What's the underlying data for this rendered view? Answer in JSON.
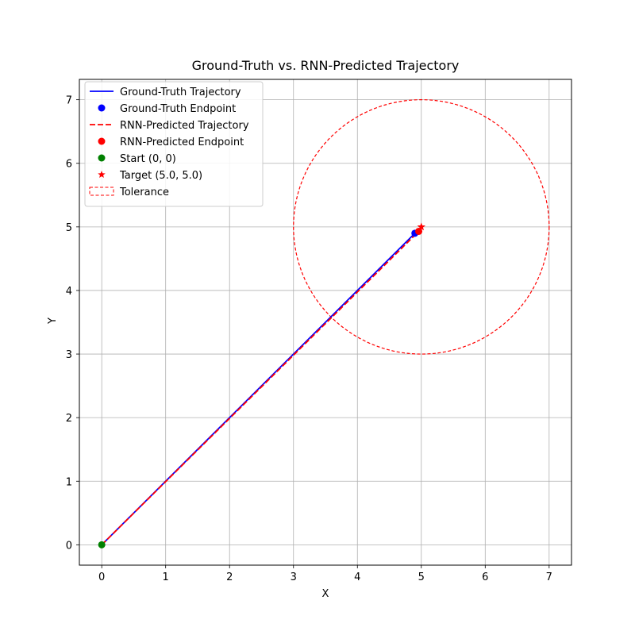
{
  "chart_data": {
    "type": "line",
    "title": "Ground-Truth vs. RNN-Predicted Trajectory",
    "xlabel": "X",
    "ylabel": "Y",
    "xlim": [
      -0.35,
      7.35
    ],
    "ylim": [
      -0.32,
      7.32
    ],
    "xticks": [
      0,
      1,
      2,
      3,
      4,
      5,
      6,
      7
    ],
    "yticks": [
      0,
      1,
      2,
      3,
      4,
      5,
      6,
      7
    ],
    "grid": true,
    "legend_position": "top-left",
    "series": [
      {
        "name": "Ground-Truth Trajectory",
        "kind": "line",
        "style": "solid",
        "color": "#0000ff",
        "x": [
          0,
          4.9
        ],
        "y": [
          0,
          4.9
        ]
      },
      {
        "name": "Ground-Truth Endpoint",
        "kind": "point",
        "marker": "circle",
        "color": "#0000ff",
        "x": [
          4.9
        ],
        "y": [
          4.9
        ]
      },
      {
        "name": "RNN-Predicted Trajectory",
        "kind": "line",
        "style": "dashed",
        "color": "#ff0000",
        "x": [
          0,
          4.96
        ],
        "y": [
          0,
          4.93
        ]
      },
      {
        "name": "RNN-Predicted Endpoint",
        "kind": "point",
        "marker": "circle",
        "color": "#ff0000",
        "x": [
          4.96
        ],
        "y": [
          4.93
        ]
      },
      {
        "name": "Start (0, 0)",
        "kind": "point",
        "marker": "circle",
        "color": "#008000",
        "x": [
          0
        ],
        "y": [
          0
        ]
      },
      {
        "name": "Target (5.0, 5.0)",
        "kind": "point",
        "marker": "star",
        "color": "#ff0000",
        "x": [
          5.0
        ],
        "y": [
          5.0
        ]
      },
      {
        "name": "Tolerance",
        "kind": "circle",
        "style": "dashed",
        "color": "#ff0000",
        "cx": 5.0,
        "cy": 5.0,
        "r": 2.0
      }
    ]
  }
}
